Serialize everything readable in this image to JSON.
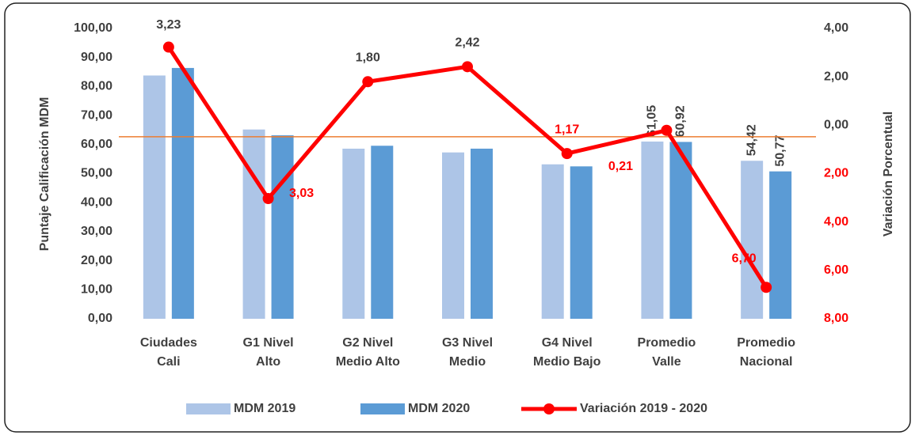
{
  "chart_data": {
    "type": "bar_line",
    "categories": [
      [
        "Ciudades",
        "Cali"
      ],
      [
        "G1 Nivel",
        "Alto"
      ],
      [
        "G2 Nivel",
        "Medio Alto"
      ],
      [
        "G3 Nivel",
        "Medio"
      ],
      [
        "G4 Nivel",
        "Medio Bajo"
      ],
      [
        "Promedio",
        "Valle"
      ],
      [
        "Promedio",
        "Nacional"
      ]
    ],
    "ylabel": "Puntaje Calificación MDM",
    "y2label": "Variación Porcentual",
    "ylim": [
      0,
      100
    ],
    "yticks": [
      {
        "value": 0,
        "label": "0,00"
      },
      {
        "value": 10,
        "label": "10,00"
      },
      {
        "value": 20,
        "label": "20,00"
      },
      {
        "value": 30,
        "label": "30,00"
      },
      {
        "value": 40,
        "label": "40,00"
      },
      {
        "value": 50,
        "label": "50,00"
      },
      {
        "value": 60,
        "label": "60,00"
      },
      {
        "value": 70,
        "label": "70,00"
      },
      {
        "value": 80,
        "label": "80,00"
      },
      {
        "value": 90,
        "label": "90,00"
      },
      {
        "value": 100,
        "label": "100,00"
      }
    ],
    "y2lim": [
      -8,
      4
    ],
    "y2ticks": [
      {
        "value": 4,
        "label": "4,00"
      },
      {
        "value": 2,
        "label": "2,00"
      },
      {
        "value": 0,
        "label": "0,00"
      },
      {
        "value": -2,
        "label": "2,00"
      },
      {
        "value": -4,
        "label": "4,00"
      },
      {
        "value": -6,
        "label": "6,00"
      },
      {
        "value": -8,
        "label": "8,00"
      }
    ],
    "negative_color": "#ff0000",
    "reference_line": {
      "value": 62.7,
      "color": "#ed7d31"
    },
    "series": [
      {
        "name": "MDM   2019",
        "type": "bar",
        "color": "#adc5e7",
        "values": [
          83.8,
          65.2,
          58.6,
          57.3,
          53.2,
          61.05,
          54.42
        ],
        "value_labels": [
          null,
          null,
          null,
          null,
          null,
          "61,05",
          "54,42"
        ]
      },
      {
        "name": "MDM   2020",
        "type": "bar",
        "color": "#5b9bd5",
        "values": [
          86.4,
          63.2,
          59.6,
          58.6,
          52.5,
          60.92,
          50.77
        ],
        "value_labels": [
          null,
          null,
          null,
          null,
          null,
          "60,92",
          "50,77"
        ]
      },
      {
        "name": "Variación 2019 - 2020",
        "type": "line",
        "axis": "y2",
        "color": "#ff0000",
        "values": [
          3.23,
          -3.03,
          1.8,
          2.42,
          -1.17,
          -0.21,
          -6.7
        ],
        "value_labels": [
          "3,23",
          "3,03",
          "1,80",
          "2,42",
          "1,17",
          "0,21",
          "6,70"
        ]
      }
    ]
  }
}
